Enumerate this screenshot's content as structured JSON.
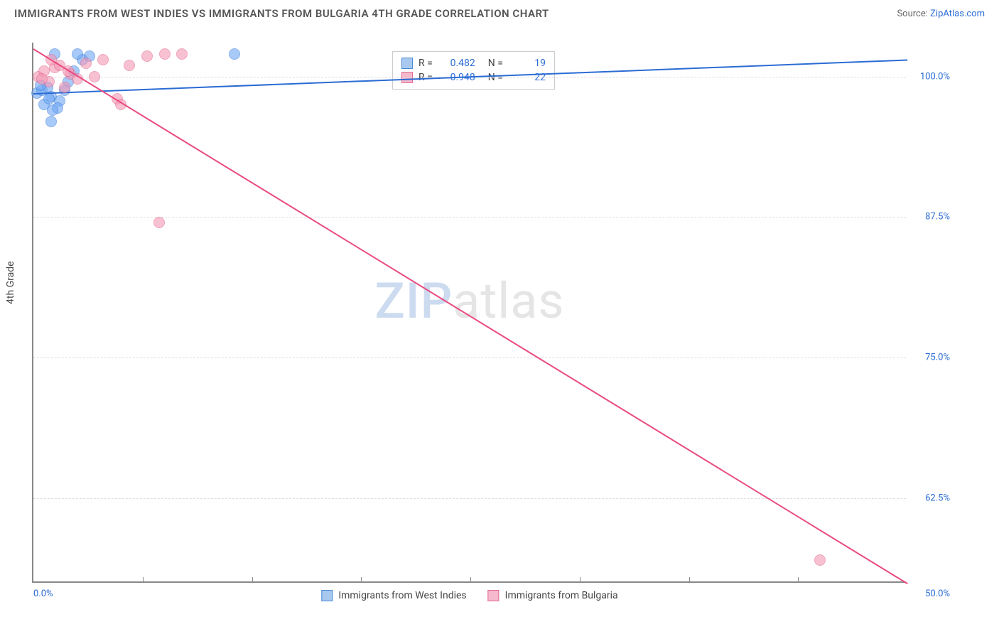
{
  "title": "IMMIGRANTS FROM WEST INDIES VS IMMIGRANTS FROM BULGARIA 4TH GRADE CORRELATION CHART",
  "source_label": "Source:",
  "source_name": "ZipAtlas.com",
  "ylabel": "4th Grade",
  "watermark_a": "ZIP",
  "watermark_b": "atlas",
  "chart": {
    "type": "scatter",
    "xlim": [
      0,
      50
    ],
    "ylim": [
      55,
      103
    ],
    "xtick_labels": [
      "0.0%",
      "50.0%"
    ],
    "ytick_labels": [
      "62.5%",
      "75.0%",
      "87.5%",
      "100.0%"
    ],
    "ytick_values": [
      62.5,
      75.0,
      87.5,
      100.0
    ],
    "x_minor_ticks": [
      6.25,
      12.5,
      18.75,
      25,
      31.25,
      37.5,
      43.75
    ],
    "grid_color": "#dddddd",
    "background_color": "#ffffff",
    "axis_color": "#888888",
    "series": [
      {
        "name": "Immigrants from West Indies",
        "color": "#6fa8f5",
        "border": "#3d7dd8",
        "trend_color": "#2a6cd4",
        "R": "0.482",
        "N": "19",
        "points": [
          [
            0.2,
            98.5
          ],
          [
            0.5,
            98.8
          ],
          [
            0.8,
            99.0
          ],
          [
            1.0,
            98.2
          ],
          [
            1.2,
            102.0
          ],
          [
            1.5,
            97.8
          ],
          [
            2.0,
            99.5
          ],
          [
            2.3,
            100.5
          ],
          [
            2.8,
            101.5
          ],
          [
            3.2,
            101.8
          ],
          [
            0.6,
            97.5
          ],
          [
            1.0,
            96.0
          ],
          [
            1.4,
            97.2
          ],
          [
            1.8,
            98.8
          ],
          [
            0.4,
            99.2
          ],
          [
            0.9,
            98.0
          ],
          [
            2.5,
            102.0
          ],
          [
            11.5,
            102.0
          ],
          [
            1.1,
            97.0
          ]
        ],
        "trend": {
          "x1": 0,
          "y1": 98.5,
          "x2": 50,
          "y2": 101.5
        }
      },
      {
        "name": "Immigrants from Bulgaria",
        "color": "#f598b5",
        "border": "#e26a91",
        "trend_color": "#e94b7f",
        "R": "-0.948",
        "N": "22",
        "points": [
          [
            0.3,
            100.0
          ],
          [
            0.6,
            100.5
          ],
          [
            0.9,
            99.5
          ],
          [
            1.2,
            100.8
          ],
          [
            1.5,
            101.0
          ],
          [
            1.8,
            99.0
          ],
          [
            2.1,
            100.2
          ],
          [
            2.5,
            99.8
          ],
          [
            3.0,
            101.2
          ],
          [
            3.5,
            100.0
          ],
          [
            4.0,
            101.5
          ],
          [
            4.8,
            98.0
          ],
          [
            5.5,
            101.0
          ],
          [
            6.5,
            101.8
          ],
          [
            7.5,
            102.0
          ],
          [
            8.5,
            102.0
          ],
          [
            0.5,
            99.8
          ],
          [
            1.0,
            101.5
          ],
          [
            2.0,
            100.5
          ],
          [
            5.0,
            97.5
          ],
          [
            7.2,
            87.0
          ],
          [
            45.0,
            57.0
          ]
        ],
        "trend": {
          "x1": 0,
          "y1": 102.5,
          "x2": 50,
          "y2": 55.0
        }
      }
    ]
  },
  "legend_top": {
    "R_label": "R =",
    "N_label": "N ="
  },
  "legend_bottom": [
    "Immigrants from West Indies",
    "Immigrants from Bulgaria"
  ]
}
